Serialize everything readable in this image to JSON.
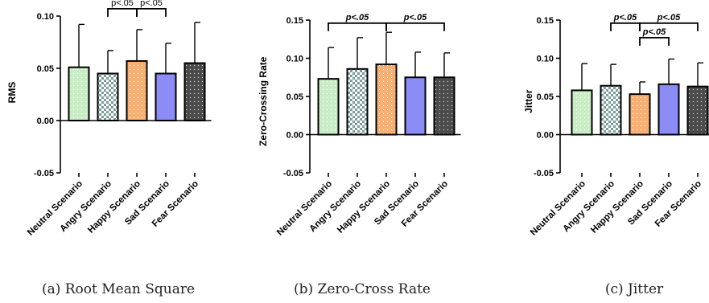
{
  "pattern_colors": {
    "neutral": {
      "bg": "#c8edc4",
      "dot": "#ffffff"
    },
    "angry": {
      "a": "#7d9e9e",
      "b": "#ffffff"
    },
    "happy": {
      "bg": "#f8b072",
      "dot": "#ffffff"
    },
    "sad": {
      "bg": "#8c8cf7"
    },
    "fear": {
      "bg": "#4b4b4b",
      "dot": "#cfcfcf"
    }
  },
  "chart_data": [
    {
      "type": "bar",
      "caption": "(a) Root Mean Square",
      "ylabel": "RMS",
      "xlabel": "",
      "ylim": [
        -0.05,
        0.1
      ],
      "yticks": [
        "-0.05",
        "0.00",
        "0.05",
        "0.10"
      ],
      "ytick_values": [
        -0.05,
        0,
        0.05,
        0.1
      ],
      "categories": [
        "Neutral Scenario",
        "Angry Scenario",
        "Happy Scenario",
        "Sad Scenario",
        "Fear Scenario"
      ],
      "values": [
        0.051,
        0.045,
        0.057,
        0.045,
        0.055
      ],
      "error_upper": [
        0.092,
        0.067,
        0.087,
        0.074,
        0.094
      ],
      "patterns": [
        "neutral",
        "angry",
        "happy",
        "sad",
        "fear"
      ],
      "annotations": [
        {
          "from": 1,
          "to": 2,
          "level": 0.107,
          "label": "p<.05",
          "style": "normal"
        },
        {
          "from": 2,
          "to": 3,
          "level": 0.107,
          "label": "p<.05",
          "style": "normal"
        }
      ],
      "grid": false
    },
    {
      "type": "bar",
      "caption": "(b) Zero-Cross Rate",
      "ylabel": "Zero-Crossing Rate",
      "xlabel": "",
      "ylim": [
        -0.05,
        0.15
      ],
      "yticks": [
        "-0.05",
        "0.00",
        "0.05",
        "0.10",
        "0.15"
      ],
      "ytick_values": [
        -0.05,
        0,
        0.05,
        0.1,
        0.15
      ],
      "categories": [
        "Neutral Scenario",
        "Angry Scenario",
        "Happy Scenario",
        "Sad Scenario",
        "Fear Scenario"
      ],
      "values": [
        0.073,
        0.086,
        0.092,
        0.075,
        0.075
      ],
      "error_upper": [
        0.114,
        0.127,
        0.134,
        0.108,
        0.107
      ],
      "patterns": [
        "neutral",
        "angry",
        "happy",
        "sad",
        "fear"
      ],
      "annotations": [
        {
          "from": 0,
          "to": 2,
          "level": 0.146,
          "label": "p<.05",
          "style": "bold-italic"
        },
        {
          "from": 2,
          "to": 4,
          "level": 0.146,
          "label": "p<.05",
          "style": "bold-italic"
        }
      ],
      "grid": false
    },
    {
      "type": "bar",
      "caption": "(c) Jitter",
      "ylabel": "Jitter",
      "xlabel": "",
      "ylim": [
        -0.05,
        0.15
      ],
      "yticks": [
        "-0.05",
        "0.00",
        "0.05",
        "0.10",
        "0.15"
      ],
      "ytick_values": [
        -0.05,
        0,
        0.05,
        0.1,
        0.15
      ],
      "categories": [
        "Neutral Scenario",
        "Angry Scenario",
        "Happy Scenario",
        "Sad Scenario",
        "Fear Scenario"
      ],
      "values": [
        0.058,
        0.064,
        0.053,
        0.066,
        0.063
      ],
      "error_upper": [
        0.093,
        0.092,
        0.069,
        0.099,
        0.094
      ],
      "patterns": [
        "neutral",
        "angry",
        "happy",
        "sad",
        "fear"
      ],
      "annotations": [
        {
          "from": 1,
          "to": 2,
          "level": 0.146,
          "label": "p<.05",
          "style": "bold-italic"
        },
        {
          "from": 2,
          "to": 4,
          "level": 0.146,
          "label": "p<.05",
          "style": "bold-italic"
        },
        {
          "from": 2,
          "to": 3,
          "level": 0.127,
          "label": "p<.05",
          "style": "bold-italic"
        }
      ],
      "grid": false
    }
  ]
}
